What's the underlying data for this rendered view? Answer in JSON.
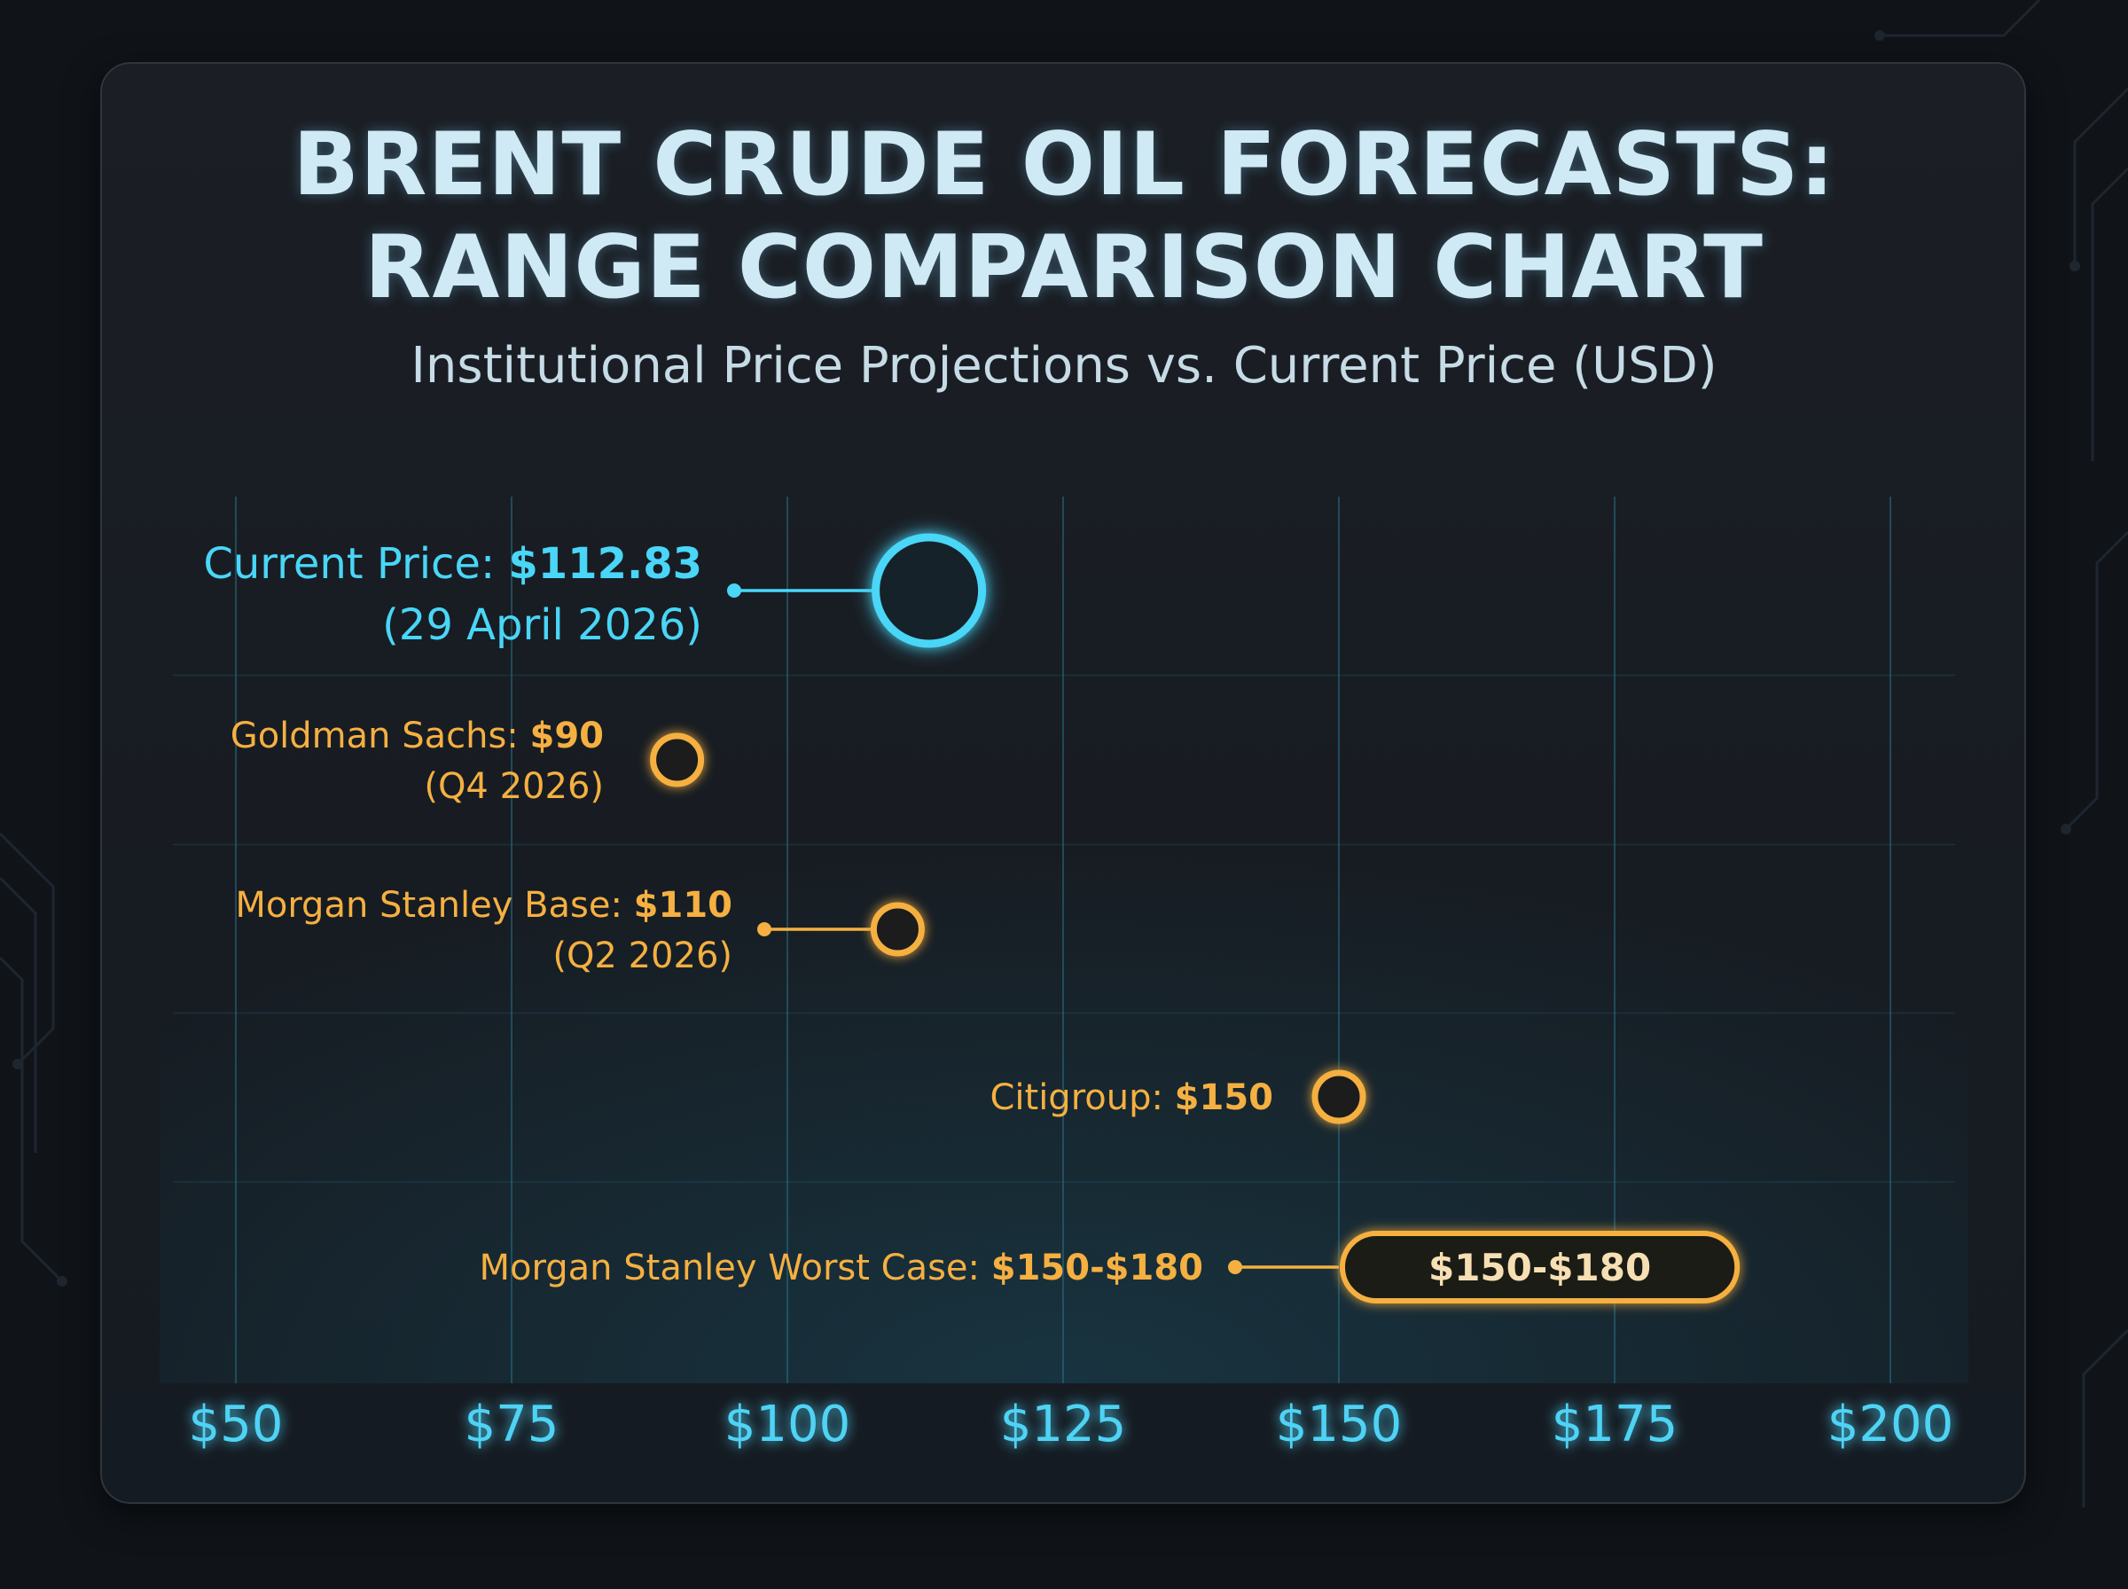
{
  "title_line1": "BRENT CRUDE OIL FORECASTS:",
  "title_line2": "RANGE COMPARISON CHART",
  "subtitle": "Institutional Price Projections vs. Current Price (USD)",
  "colors": {
    "current": "#49d6f7",
    "forecast": "#f5b041",
    "grid": "#2a6f86",
    "axis": "#4fd3f5",
    "background": "#101419"
  },
  "chart_data": {
    "type": "scatter",
    "xlim": [
      50,
      200
    ],
    "x_ticks": [
      50,
      75,
      100,
      125,
      150,
      175,
      200
    ],
    "x_tick_labels": [
      "$50",
      "$75",
      "$100",
      "$125",
      "$150",
      "$175",
      "$200"
    ],
    "grid": true,
    "points": [
      {
        "kind": "current",
        "label_prefix": "Current Price: ",
        "label_value": "$112.83",
        "label_sub": "(29 April 2026)",
        "value": 112.83
      },
      {
        "kind": "forecast",
        "label_prefix": "Goldman Sachs: ",
        "label_value": "$90",
        "label_sub": "(Q4 2026)",
        "value": 90
      },
      {
        "kind": "forecast",
        "label_prefix": "Morgan Stanley Base: ",
        "label_value": "$110",
        "label_sub": "(Q2 2026)",
        "value": 110
      },
      {
        "kind": "forecast",
        "label_prefix": "Citigroup: ",
        "label_value": "$150",
        "label_sub": "",
        "value": 150
      },
      {
        "kind": "range",
        "label_prefix": "Morgan Stanley Worst Case: ",
        "label_value": "$150-$180",
        "label_sub": "",
        "range": [
          150,
          180
        ],
        "range_label": "$150-$180"
      }
    ]
  }
}
